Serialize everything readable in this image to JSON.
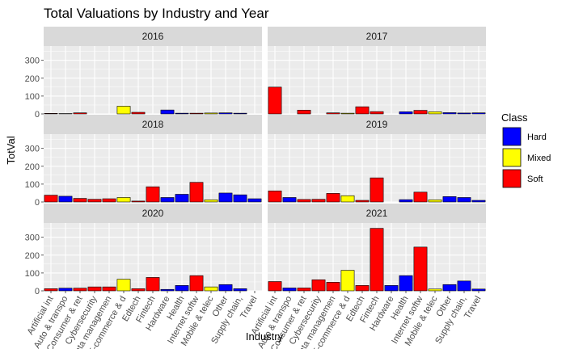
{
  "chart_data": {
    "type": "bar",
    "title": "Total Valuations by Industry and Year",
    "xlabel": "Industry",
    "ylabel": "TotVal",
    "ylim": [
      0,
      380
    ],
    "yticks": [
      0,
      100,
      200,
      300
    ],
    "categories": [
      "Artificial int",
      "Auto & transpo",
      "Consumer & ret",
      "Cybersecurity",
      "Data managemen",
      "E-commerce & d",
      "Edtech",
      "Fintech",
      "Hardware",
      "Health",
      "Internet softw",
      "Mobile & telec",
      "Other",
      "Supply chain,",
      "Travel"
    ],
    "category_class": [
      "Soft",
      "Hard",
      "Soft",
      "Soft",
      "Soft",
      "Mixed",
      "Soft",
      "Soft",
      "Hard",
      "Hard",
      "Soft",
      "Mixed",
      "Hard",
      "Hard",
      "Hard"
    ],
    "legend": {
      "title": "Class",
      "position": "right",
      "entries": [
        {
          "name": "Hard",
          "color": "#0000ff"
        },
        {
          "name": "Mixed",
          "color": "#ffff00"
        },
        {
          "name": "Soft",
          "color": "#ff0000"
        }
      ]
    },
    "grid": true,
    "panels": [
      {
        "year": "2016",
        "values": [
          3,
          2,
          6,
          0,
          0,
          43,
          9,
          0,
          22,
          4,
          4,
          5,
          6,
          4,
          0
        ]
      },
      {
        "year": "2017",
        "values": [
          150,
          0,
          21,
          0,
          6,
          4,
          40,
          13,
          0,
          12,
          20,
          12,
          7,
          5,
          6
        ]
      },
      {
        "year": "2018",
        "values": [
          38,
          32,
          20,
          15,
          18,
          25,
          5,
          85,
          25,
          43,
          110,
          12,
          50,
          40,
          18
        ]
      },
      {
        "year": "2019",
        "values": [
          62,
          25,
          14,
          15,
          48,
          35,
          9,
          135,
          0,
          13,
          55,
          12,
          30,
          25,
          9
        ]
      },
      {
        "year": "2020",
        "values": [
          12,
          15,
          15,
          22,
          22,
          65,
          12,
          75,
          8,
          30,
          85,
          22,
          35,
          12,
          0
        ]
      },
      {
        "year": "2021",
        "values": [
          52,
          16,
          16,
          62,
          48,
          115,
          30,
          350,
          30,
          85,
          245,
          10,
          35,
          55,
          10
        ]
      }
    ]
  }
}
